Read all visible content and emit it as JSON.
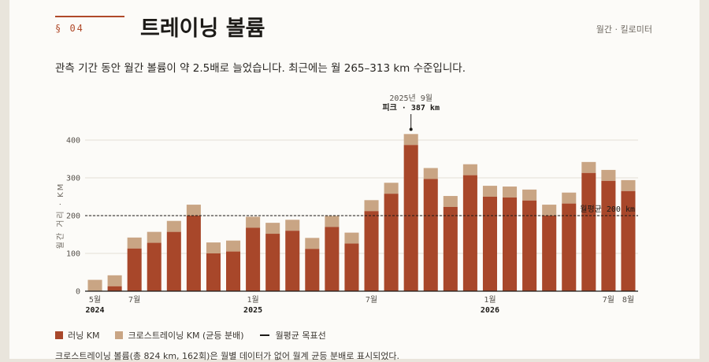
{
  "header": {
    "section": "§ 04",
    "title": "트레이닝 볼륨",
    "units": "월간 · 킬로미터",
    "subtitle": "관측 기간 동안 월간 볼륨이 약 2.5배로 늘었습니다. 최근에는 월 265–313 km 수준입니다."
  },
  "legend": {
    "running": "러닝 KM",
    "cross": "크로스트레이닝 KM (균등 분배)",
    "goal": "월평균 목표선"
  },
  "note": "크로스트레이닝 볼륨(총 824 km, 162회)은 월별 데이터가 없어 월계 균등 분배로 표시되었다.",
  "colors": {
    "running": "#a8472a",
    "cross": "#c9a584",
    "goal": "#1c1a17"
  },
  "chart_data": {
    "type": "bar",
    "stacked": true,
    "ylabel": "월간 거리 · KM",
    "ylim": [
      0,
      400
    ],
    "yticks": [
      0,
      100,
      200,
      300,
      400
    ],
    "categories": [
      "2024-05",
      "2024-06",
      "2024-07",
      "2024-08",
      "2024-09",
      "2024-10",
      "2024-11",
      "2024-12",
      "2025-01",
      "2025-02",
      "2025-03",
      "2025-04",
      "2025-05",
      "2025-06",
      "2025-07",
      "2025-08",
      "2025-09",
      "2025-10",
      "2025-11",
      "2025-12",
      "2026-01",
      "2026-02",
      "2026-03",
      "2026-04",
      "2026-05",
      "2026-06",
      "2026-07",
      "2026-08"
    ],
    "x_tick_labels": [
      {
        "index": 0,
        "label": "5월",
        "year": "2024"
      },
      {
        "index": 2,
        "label": "7월"
      },
      {
        "index": 8,
        "label": "1월",
        "year": "2025"
      },
      {
        "index": 14,
        "label": "7월"
      },
      {
        "index": 20,
        "label": "1월",
        "year": "2026"
      },
      {
        "index": 26,
        "label": "7월"
      },
      {
        "index": 27,
        "label": "8월"
      }
    ],
    "series": [
      {
        "name": "러닝 KM",
        "values": [
          0,
          13,
          113,
          128,
          157,
          200,
          100,
          105,
          168,
          152,
          160,
          112,
          170,
          126,
          212,
          258,
          387,
          297,
          223,
          307,
          250,
          248,
          240,
          200,
          232,
          313,
          292,
          265
        ]
      },
      {
        "name": "크로스트레이닝 KM (균등 분배)",
        "values": [
          30,
          29,
          29,
          29,
          29,
          29,
          29,
          29,
          29,
          29,
          29,
          29,
          29,
          29,
          29,
          29,
          29,
          29,
          29,
          29,
          29,
          29,
          29,
          29,
          29,
          29,
          29,
          29
        ]
      }
    ],
    "goal_line": {
      "value": 200,
      "label": "월평균 200 km"
    },
    "annotation": {
      "index": 16,
      "line1": "2025년 9월",
      "line2": "피크 · 387 km"
    }
  }
}
